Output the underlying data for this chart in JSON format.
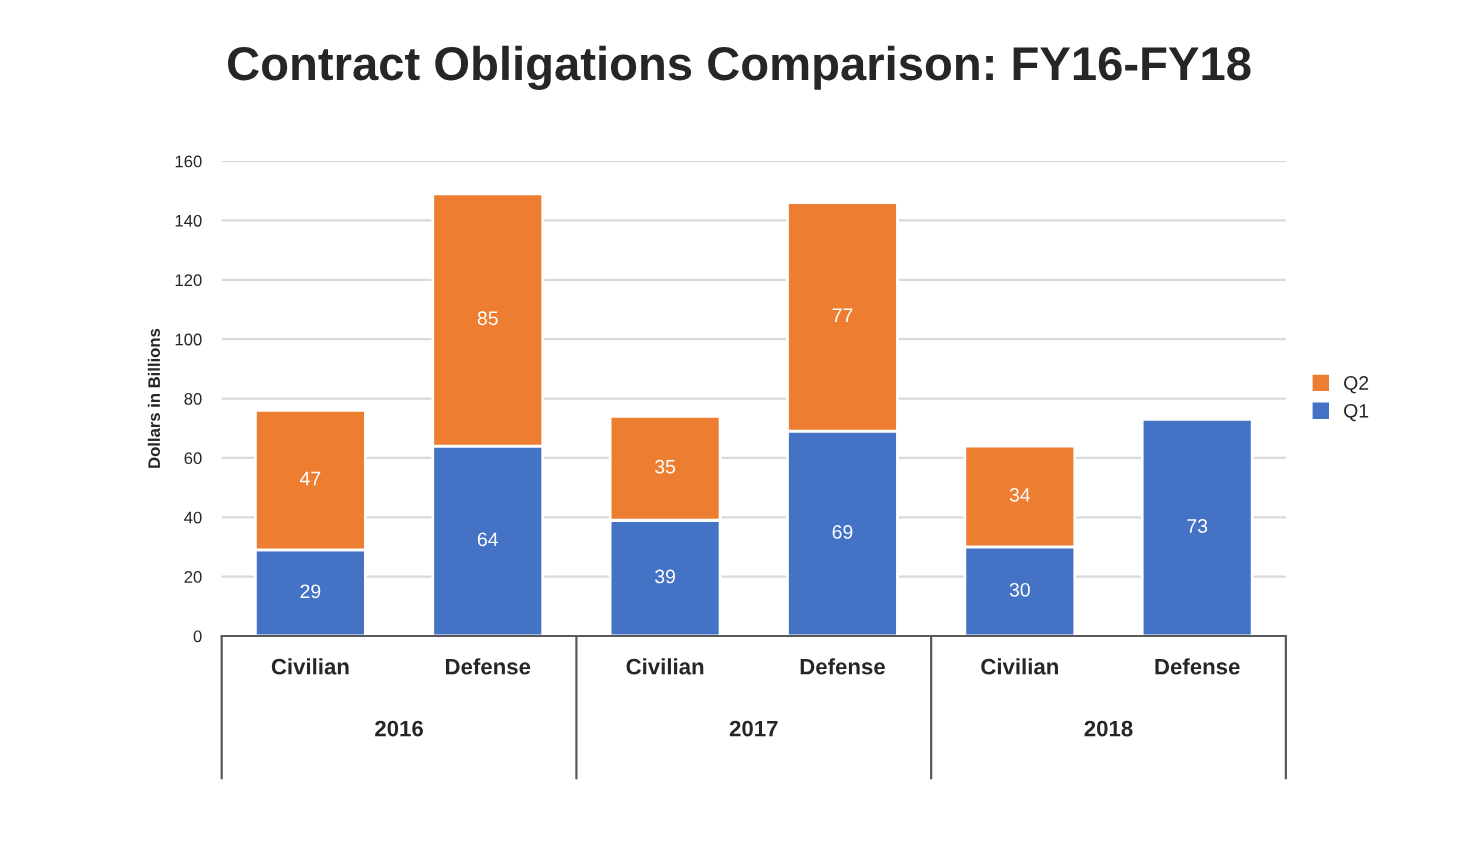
{
  "chart_data": {
    "type": "bar",
    "title": "Contract Obligations Comparison: FY16-FY18",
    "ylabel": "Dollars in Billions",
    "categories": [
      "Civilian",
      "Defense",
      "Civilian",
      "Defense",
      "Civilian",
      "Defense"
    ],
    "stacked": true,
    "series": [
      {
        "name": "Q1",
        "color": "#4472c4",
        "values": [
          29,
          64,
          39,
          69,
          30,
          73
        ]
      },
      {
        "name": "Q2",
        "color": "#ed7d31",
        "values": [
          47,
          85,
          35,
          77,
          34,
          null
        ]
      }
    ],
    "data_labels": true,
    "ylim": [
      0,
      160
    ],
    "yticks": [
      0,
      20,
      40,
      60,
      80,
      100,
      120,
      140,
      160
    ],
    "grid": "y",
    "legend": "right",
    "annotations": [
      "2016",
      "2017",
      "2018"
    ]
  }
}
